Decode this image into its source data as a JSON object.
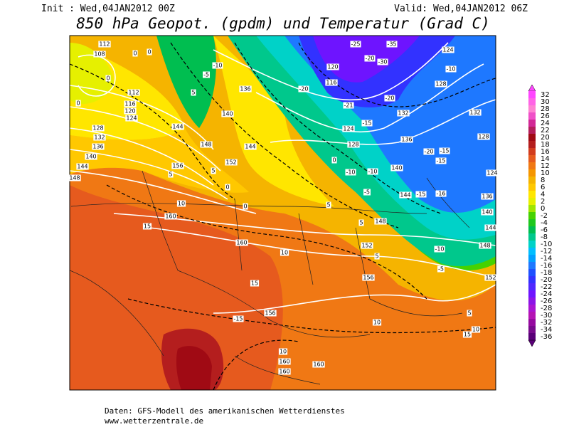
{
  "header": {
    "init": "Init : Wed,04JAN2012 00Z",
    "valid": "Valid: Wed,04JAN2012 06Z",
    "title": "850 hPa Geopot. (gpdm) und Temperatur (Grad C)"
  },
  "colorbar": {
    "levels": [
      32,
      30,
      28,
      26,
      24,
      22,
      20,
      18,
      16,
      14,
      12,
      10,
      8,
      6,
      4,
      2,
      0,
      -2,
      -4,
      -6,
      -8,
      -10,
      -12,
      -14,
      -16,
      -18,
      -20,
      -22,
      -24,
      -26,
      -28,
      -30,
      -32,
      -34,
      -36
    ],
    "colors": [
      "#ff46ff",
      "#ff64e6",
      "#ff82d2",
      "#f050c8",
      "#d22896",
      "#b41e5a",
      "#a00a14",
      "#b41e1e",
      "#d23c1e",
      "#e65a1e",
      "#f07814",
      "#f59600",
      "#f5b400",
      "#ffc800",
      "#ffe600",
      "#e6f000",
      "#a0e600",
      "#46d200",
      "#1ec81e",
      "#00be50",
      "#00c88c",
      "#00d2c8",
      "#00beff",
      "#00a0ff",
      "#1e78ff",
      "#1e50ff",
      "#3232ff",
      "#5028ff",
      "#6e14ff",
      "#8c14e6",
      "#aa14d2",
      "#b414b4",
      "#960aa0",
      "#780a8c",
      "#5a0078"
    ]
  },
  "map": {
    "geopotential_labels": [
      "112",
      "108",
      "112",
      "116",
      "120",
      "124",
      "128",
      "132",
      "136",
      "140",
      "144",
      "148",
      "144",
      "148",
      "152",
      "156",
      "144",
      "140",
      "136",
      "120",
      "116",
      "124",
      "128",
      "132",
      "136",
      "140",
      "144",
      "148",
      "152",
      "156",
      "156",
      "160",
      "160",
      "160",
      "160",
      "160",
      "124",
      "128",
      "132",
      "128",
      "124",
      "136",
      "140",
      "144",
      "148",
      "152"
    ],
    "temperature_labels": [
      "-20",
      "-21",
      "-15",
      "-10",
      "-10",
      "-5",
      "-20",
      "-20",
      "-15",
      "-15",
      "-15",
      "-16",
      "-10",
      "-5",
      "-10",
      "0",
      "5",
      "5",
      "5",
      "5",
      "10",
      "10",
      "10",
      "15",
      "15",
      "-15",
      "10",
      "5",
      "0",
      "0",
      "-5",
      "-10",
      "5",
      "5",
      "0",
      "0",
      "-20",
      "-35",
      "-30",
      "-25",
      "15",
      "10",
      "0",
      "0"
    ]
  },
  "footer": {
    "source": "Daten: GFS-Modell des amerikanischen Wetterdienstes",
    "website": "www.wetterzentrale.de"
  }
}
